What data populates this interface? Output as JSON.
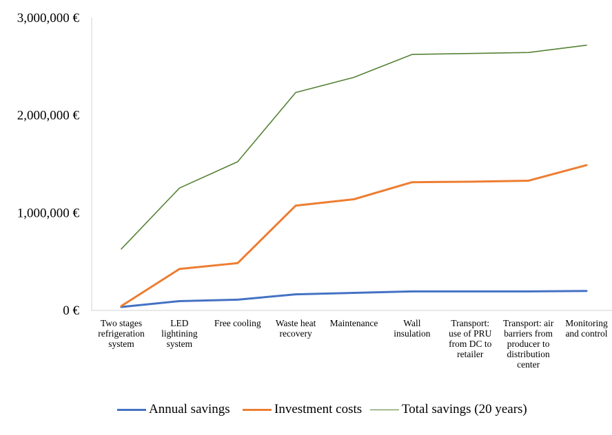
{
  "chart_data": {
    "type": "line",
    "categories": [
      "Two stages refrigeration system",
      "LED lightining system",
      "Free cooling",
      "Waste heat recovery",
      "Maintenance",
      "Wall insulation",
      "Transport: use of PRU from DC to retailer",
      "Transport: air barriers from producer to distribution center",
      "Monitoring and control"
    ],
    "category_lines": [
      [
        "Two stages",
        "refrigeration",
        "system"
      ],
      [
        "LED",
        "lightining",
        "system"
      ],
      [
        "Free cooling"
      ],
      [
        "Waste heat",
        "recovery"
      ],
      [
        "Maintenance"
      ],
      [
        "Wall",
        "insulation"
      ],
      [
        "Transport:",
        "use of PRU",
        "from DC to",
        "retailer"
      ],
      [
        "Transport: air",
        "barriers from",
        "producer to",
        "distribution",
        "center"
      ],
      [
        "Monitoring",
        "and control"
      ]
    ],
    "series": [
      {
        "name": "Annual savings",
        "color": "#4472C4",
        "values": [
          35000,
          95000,
          110000,
          165000,
          180000,
          195000,
          195000,
          195000,
          200000
        ]
      },
      {
        "name": "Investment costs",
        "color": "#ED7D31",
        "values": [
          45000,
          425000,
          485000,
          1075000,
          1140000,
          1315000,
          1320000,
          1330000,
          1490000
        ]
      },
      {
        "name": "Total savings (20 years)",
        "color": "#548235",
        "values": [
          630000,
          1255000,
          1525000,
          2235000,
          2390000,
          2625000,
          2635000,
          2645000,
          2720000
        ]
      }
    ],
    "y_ticks": [
      0,
      1000000,
      2000000,
      3000000
    ],
    "y_tick_labels": [
      "0 €",
      "1,000,000 €",
      "2,000,000 €",
      "3,000,000 €"
    ],
    "ylim": [
      0,
      3000000
    ],
    "grid": false,
    "legend_position": "bottom"
  }
}
